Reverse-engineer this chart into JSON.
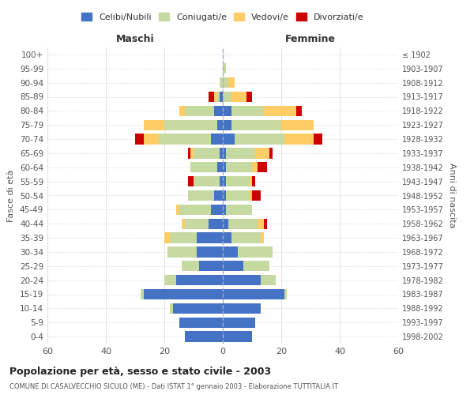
{
  "age_groups": [
    "0-4",
    "5-9",
    "10-14",
    "15-19",
    "20-24",
    "25-29",
    "30-34",
    "35-39",
    "40-44",
    "45-49",
    "50-54",
    "55-59",
    "60-64",
    "65-69",
    "70-74",
    "75-79",
    "80-84",
    "85-89",
    "90-94",
    "95-99",
    "100+"
  ],
  "birth_years": [
    "1998-2002",
    "1993-1997",
    "1988-1992",
    "1983-1987",
    "1978-1982",
    "1973-1977",
    "1968-1972",
    "1963-1967",
    "1958-1962",
    "1953-1957",
    "1948-1952",
    "1943-1947",
    "1938-1942",
    "1933-1937",
    "1928-1932",
    "1923-1927",
    "1918-1922",
    "1913-1917",
    "1908-1912",
    "1903-1907",
    "≤ 1902"
  ],
  "maschi": {
    "celibi": [
      13,
      15,
      17,
      27,
      16,
      8,
      9,
      9,
      5,
      4,
      3,
      1,
      2,
      1,
      4,
      2,
      3,
      1,
      0,
      0,
      0
    ],
    "coniugati": [
      0,
      0,
      1,
      1,
      4,
      6,
      10,
      9,
      8,
      11,
      9,
      9,
      9,
      9,
      18,
      18,
      10,
      1,
      1,
      0,
      0
    ],
    "vedovi": [
      0,
      0,
      0,
      0,
      0,
      0,
      0,
      2,
      1,
      1,
      0,
      0,
      0,
      1,
      5,
      7,
      2,
      1,
      0,
      0,
      0
    ],
    "divorziati": [
      0,
      0,
      0,
      0,
      0,
      0,
      0,
      0,
      0,
      0,
      0,
      2,
      0,
      1,
      3,
      0,
      0,
      2,
      0,
      0,
      0
    ]
  },
  "femmine": {
    "nubili": [
      10,
      11,
      13,
      21,
      13,
      7,
      5,
      3,
      2,
      1,
      1,
      1,
      1,
      1,
      4,
      3,
      3,
      0,
      0,
      0,
      0
    ],
    "coniugate": [
      0,
      0,
      0,
      1,
      5,
      9,
      12,
      10,
      10,
      9,
      8,
      8,
      9,
      10,
      17,
      17,
      11,
      3,
      2,
      1,
      0
    ],
    "vedove": [
      0,
      0,
      0,
      0,
      0,
      0,
      0,
      1,
      2,
      0,
      1,
      1,
      2,
      5,
      10,
      11,
      11,
      5,
      2,
      0,
      0
    ],
    "divorziate": [
      0,
      0,
      0,
      0,
      0,
      0,
      0,
      0,
      1,
      0,
      3,
      1,
      3,
      1,
      3,
      0,
      2,
      2,
      0,
      0,
      0
    ]
  },
  "colors": {
    "celibi": "#4472C4",
    "coniugati": "#C5D9A0",
    "vedovi": "#FFCC66",
    "divorziati": "#CC0000"
  },
  "xlim": 60,
  "title": "Popolazione per età, sesso e stato civile - 2003",
  "subtitle": "COMUNE DI CASALVECCHIO SICULO (ME) - Dati ISTAT 1° gennaio 2003 - Elaborazione TUTTITALIA.IT",
  "ylabel_left": "Fasce di età",
  "ylabel_right": "Anni di nascita",
  "xlabel_maschi": "Maschi",
  "xlabel_femmine": "Femmine",
  "legend_labels": [
    "Celibi/Nubili",
    "Coniugati/e",
    "Vedovi/e",
    "Divorziati/e"
  ],
  "bg_color": "#FFFFFF",
  "grid_color": "#CCCCCC"
}
